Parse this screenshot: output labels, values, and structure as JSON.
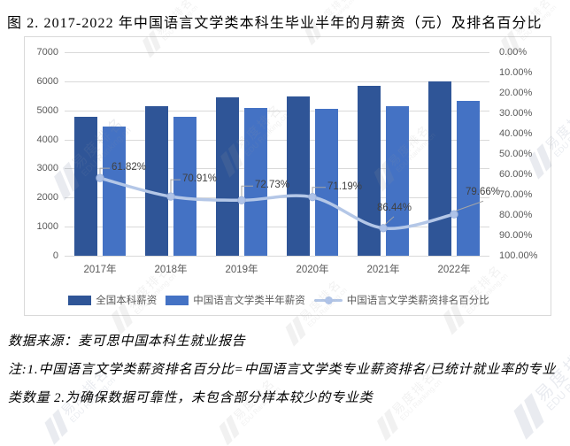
{
  "title": "图 2. 2017-2022 年中国语言文学类本科生毕业半年的月薪资（元）及排名百分比",
  "chart_data": {
    "type": "bar",
    "subtype": "combo-bar-line",
    "categories": [
      "2017年",
      "2018年",
      "2019年",
      "2020年",
      "2021年",
      "2022年"
    ],
    "series": [
      {
        "name": "全国本科薪资",
        "type": "bar",
        "axis": "left",
        "color": "#2F5597",
        "values": [
          4774,
          5135,
          5440,
          5471,
          5833,
          5990
        ]
      },
      {
        "name": "中国语言文学类半年薪资",
        "type": "bar",
        "axis": "left",
        "color": "#4472C4",
        "values": [
          4445,
          4775,
          5090,
          5050,
          5140,
          5320
        ]
      },
      {
        "name": "中国语言文学类薪资排名百分比",
        "type": "line",
        "axis": "right",
        "color": "#B4C7E7",
        "marker_color": "#AFC3E8",
        "values": [
          61.82,
          70.91,
          72.73,
          71.19,
          86.44,
          79.66
        ],
        "labels": [
          "61.82%",
          "70.91%",
          "72.73%",
          "71.19%",
          "86.44%",
          "79.66%"
        ]
      }
    ],
    "left_axis": {
      "min": 0,
      "max": 7000,
      "step": 1000,
      "ticks": [
        "7000",
        "6000",
        "5000",
        "4000",
        "3000",
        "2000",
        "1000",
        "0"
      ]
    },
    "right_axis": {
      "min": 0,
      "max": 100,
      "step": 10,
      "inverted": true,
      "ticks": [
        "0.00%",
        "10.00%",
        "20.00%",
        "30.00%",
        "40.00%",
        "50.00%",
        "60.00%",
        "70.00%",
        "80.00%",
        "90.00%",
        "100.00%"
      ]
    },
    "grid": true,
    "legend_position": "bottom"
  },
  "footer": {
    "source": "数据来源：麦可思中国本科生就业报告",
    "note_line1": "注:1.中国语言文学类薪资排名百分比=中国语言文学类专业薪资排名/已统计就业率的专业",
    "note_line2": "类数量 2.为确保数据可靠性，未包含部分样本较少的专业类"
  },
  "watermark": {
    "brand": "易度排名",
    "domain": "EDU Ranking.cn"
  },
  "colors": {
    "grid": "#D9D9D9",
    "axis_text": "#595959",
    "data_label_text": "#404040",
    "leader_line": "#A6A6A6",
    "frame_border": "#D9D9D9"
  }
}
